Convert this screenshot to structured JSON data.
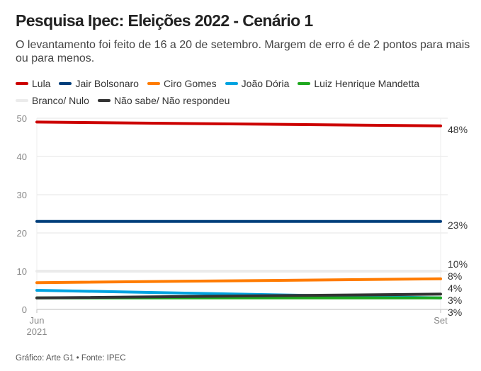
{
  "header": {
    "title": "Pesquisa Ipec: Eleições 2022 - Cenário 1",
    "subtitle": "O levantamento foi feito de 16 a 20 de setembro. Margem de erro é de 2 pontos para mais ou para menos."
  },
  "footer": {
    "source": "Gráfico: Arte G1 • Fonte: IPEC"
  },
  "chart_data": {
    "type": "line",
    "title": "Pesquisa Ipec: Eleições 2022 - Cenário 1",
    "x_categories": [
      "Jun 2021",
      "Set"
    ],
    "x_tick_labels": [
      [
        "Jun",
        "2021"
      ],
      [
        "Set"
      ]
    ],
    "ylim": [
      0,
      50
    ],
    "y_ticks": [
      0,
      10,
      20,
      30,
      40,
      50
    ],
    "grid": true,
    "legend_placement": "top",
    "series": [
      {
        "name": "Lula",
        "color": "#cc0000",
        "values": [
          49,
          48
        ],
        "end_label": "48%"
      },
      {
        "name": "Jair Bolsonaro",
        "color": "#003d7a",
        "values": [
          23,
          23
        ],
        "end_label": "23%"
      },
      {
        "name": "Ciro Gomes",
        "color": "#ff7b00",
        "values": [
          7,
          8
        ],
        "end_label": "8%"
      },
      {
        "name": "João Dória",
        "color": "#00a3e0",
        "values": [
          5,
          3
        ],
        "end_label": "3%"
      },
      {
        "name": "Luiz Henrique Mandetta",
        "color": "#1ea81e",
        "values": [
          3,
          3
        ],
        "end_label": "3%"
      },
      {
        "name": "Branco/ Nulo",
        "color": "#ebebeb",
        "values": [
          10,
          10
        ],
        "end_label": "10%"
      },
      {
        "name": "Não sabe/ Não respondeu",
        "color": "#333333",
        "values": [
          3,
          4
        ],
        "end_label": "4%"
      }
    ]
  }
}
